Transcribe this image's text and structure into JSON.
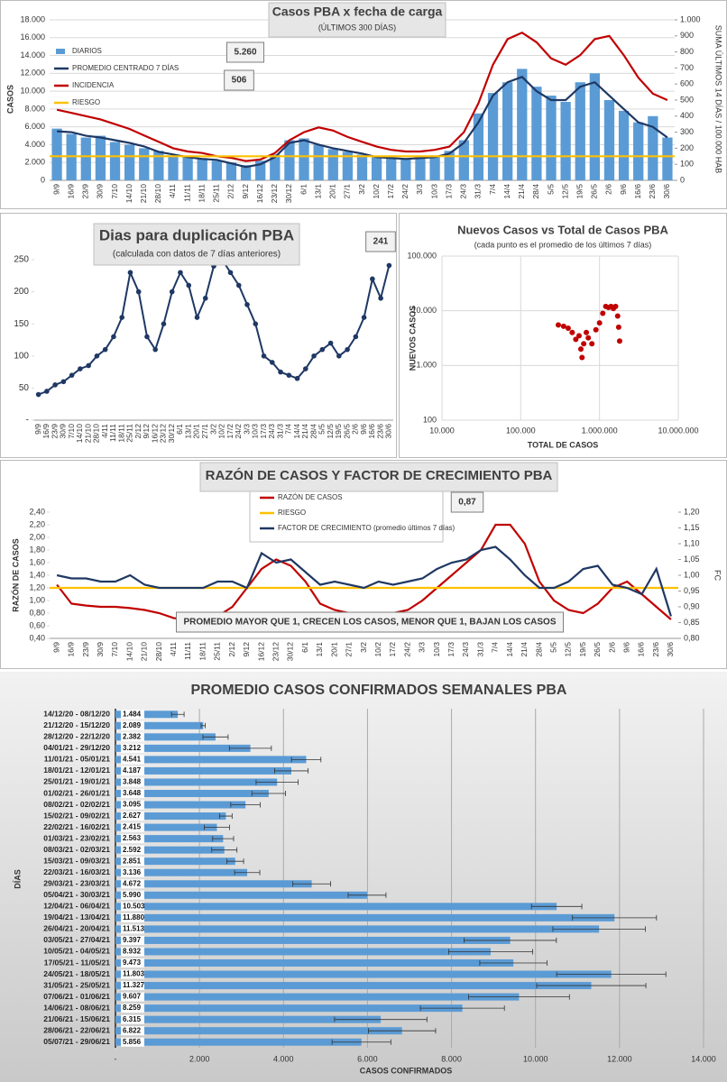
{
  "chart_data": [
    {
      "type": "combo",
      "title": "Casos PBA x fecha de carga",
      "subtitle": "(ÚLTIMOS 300 DÍAS)",
      "ylabel": "CASOS",
      "y2label": "SUMA ÚLTIMOS 14 DÍAS / 100.000 HAB",
      "annotations": [
        "5.260",
        "506"
      ],
      "grid": true,
      "categories": [
        "9/9",
        "16/9",
        "23/9",
        "30/9",
        "7/10",
        "14/10",
        "21/10",
        "28/10",
        "4/11",
        "11/11",
        "18/11",
        "25/11",
        "2/12",
        "9/12",
        "16/12",
        "23/12",
        "30/12",
        "6/1",
        "13/1",
        "20/1",
        "27/1",
        "3/2",
        "10/2",
        "17/2",
        "24/2",
        "3/3",
        "10/3",
        "17/3",
        "24/3",
        "31/3",
        "7/4",
        "14/4",
        "21/4",
        "28/4",
        "5/5",
        "12/5",
        "19/5",
        "26/5",
        "2/6",
        "9/6",
        "16/6",
        "23/6",
        "30/6"
      ],
      "series": [
        {
          "name": "DIARIOS",
          "type": "bar",
          "color": "#5b9bd5",
          "values": [
            5800,
            5200,
            4800,
            5000,
            4300,
            4000,
            3600,
            3300,
            2800,
            2600,
            2500,
            2200,
            2000,
            1700,
            2200,
            2900,
            4500,
            4700,
            4000,
            3500,
            3200,
            2900,
            2700,
            2500,
            2500,
            2600,
            2800,
            3300,
            4500,
            7500,
            9800,
            11000,
            12500,
            10500,
            9500,
            8800,
            11000,
            12000,
            9000,
            7800,
            6500,
            7200,
            4800
          ]
        },
        {
          "name": "PROMEDIO CENTRADO 7 DÍAS",
          "type": "line",
          "color": "#1f3864",
          "values": [
            5500,
            5400,
            5000,
            4800,
            4500,
            4200,
            3800,
            3200,
            2900,
            2600,
            2400,
            2300,
            1900,
            1500,
            1800,
            2600,
            4200,
            4500,
            4000,
            3600,
            3300,
            3000,
            2600,
            2500,
            2400,
            2500,
            2600,
            3000,
            4200,
            6500,
            9500,
            11000,
            11600,
            10000,
            9000,
            9000,
            10500,
            11000,
            9500,
            8000,
            6500,
            6000,
            4800
          ]
        },
        {
          "name": "INCIDENCIA",
          "type": "line",
          "axis": "y2",
          "color": "#c00000",
          "values": [
            440,
            420,
            400,
            380,
            350,
            320,
            280,
            240,
            200,
            180,
            170,
            150,
            140,
            120,
            130,
            170,
            250,
            300,
            330,
            310,
            270,
            240,
            210,
            190,
            180,
            180,
            190,
            210,
            300,
            480,
            720,
            880,
            920,
            860,
            760,
            720,
            780,
            880,
            900,
            780,
            640,
            540,
            500
          ]
        },
        {
          "name": "RIESGO",
          "type": "hline",
          "axis": "y2",
          "color": "#ffc000",
          "value": 150
        }
      ],
      "ylim": [
        0,
        18000
      ],
      "yticks": [
        0,
        {
          "value": 2000,
          "label": "2.000"
        },
        {
          "value": 4000,
          "label": "4.000"
        },
        {
          "value": 6000,
          "label": "6.000"
        },
        {
          "value": 8000,
          "label": "8.000"
        },
        {
          "value": 10000,
          "label": "10.000"
        },
        {
          "value": 12000,
          "label": "12.000"
        },
        {
          "value": 14000,
          "label": "14.000"
        },
        {
          "value": 16000,
          "label": "16.000"
        },
        {
          "value": 18000,
          "label": "18.000"
        }
      ],
      "y2lim": [
        0,
        1000
      ],
      "y2ticks": [
        0,
        100,
        200,
        300,
        400,
        500,
        600,
        700,
        800,
        900,
        {
          "value": 1000,
          "label": "1.000"
        }
      ]
    },
    {
      "type": "line",
      "title": "Dias para duplicación PBA",
      "subtitle": "(calculada con datos de 7 días anteriores)",
      "annotations": [
        "241"
      ],
      "color": "#1f3864",
      "grid": false,
      "categories": [
        "9/9",
        "16/9",
        "23/9",
        "30/9",
        "7/10",
        "14/10",
        "21/10",
        "28/10",
        "4/11",
        "11/11",
        "18/11",
        "25/11",
        "2/12",
        "9/12",
        "16/12",
        "23/12",
        "30/12",
        "6/1",
        "13/1",
        "20/1",
        "27/1",
        "3/2",
        "10/2",
        "17/2",
        "24/2",
        "3/3",
        "10/3",
        "17/3",
        "24/3",
        "31/3",
        "7/4",
        "14/4",
        "21/4",
        "28/4",
        "5/5",
        "12/5",
        "19/5",
        "26/5",
        "2/6",
        "9/6",
        "16/6",
        "23/6",
        "30/6"
      ],
      "values": [
        40,
        45,
        55,
        60,
        70,
        80,
        85,
        100,
        110,
        130,
        160,
        230,
        200,
        130,
        110,
        150,
        200,
        230,
        210,
        160,
        190,
        240,
        250,
        230,
        210,
        180,
        150,
        100,
        90,
        75,
        70,
        65,
        80,
        100,
        110,
        120,
        100,
        110,
        130,
        160,
        220,
        190,
        241
      ],
      "ylim": [
        0,
        250
      ],
      "yticks": [
        {
          "value": 0,
          "label": "-"
        },
        50,
        100,
        150,
        200,
        250
      ]
    },
    {
      "type": "scatter",
      "title": "Nuevos Casos vs Total de Casos PBA",
      "subtitle": "(cada punto es el promedio de los últimos 7 días)",
      "xlabel": "TOTAL DE CASOS",
      "ylabel": "NUEVOS CASOS",
      "color": "#c00000",
      "log_x": true,
      "log_y": true,
      "grid": true,
      "x": [
        300000,
        350000,
        400000,
        450000,
        500000,
        550000,
        580000,
        600000,
        630000,
        680000,
        720000,
        800000,
        900000,
        1000000,
        1100000,
        1200000,
        1300000,
        1400000,
        1500000,
        1600000,
        1700000,
        1750000,
        1800000
      ],
      "values": [
        5500,
        5200,
        4800,
        4000,
        3000,
        3500,
        2000,
        1400,
        2500,
        4000,
        3200,
        2500,
        4500,
        6000,
        9000,
        12000,
        11500,
        12000,
        11000,
        12000,
        8000,
        5000,
        2800
      ],
      "xlim": [
        10000,
        10000000
      ],
      "xticks": [
        {
          "value": 10000,
          "label": "10.000"
        },
        {
          "value": 100000,
          "label": "100.000"
        },
        {
          "value": 1000000,
          "label": "1.000.000"
        },
        {
          "value": 10000000,
          "label": "10.000.000"
        }
      ],
      "ylim": [
        100,
        100000
      ],
      "yticks": [
        100,
        {
          "value": 1000,
          "label": "1.000"
        },
        {
          "value": 10000,
          "label": "10.000"
        },
        {
          "value": 100000,
          "label": "100.000"
        }
      ]
    },
    {
      "type": "combo",
      "title": "RAZÓN DE CASOS Y FACTOR DE CRECIMIENTO PBA",
      "ylabel": "RAZÓN DE CASOS",
      "y2label": "FC",
      "annotations": [
        "0,87",
        "PROMEDIO MAYOR QUE 1, CRECEN LOS CASOS, MENOR QUE 1, BAJAN LOS CASOS"
      ],
      "grid": false,
      "categories": [
        "9/9",
        "16/9",
        "23/9",
        "30/9",
        "7/10",
        "14/10",
        "21/10",
        "28/10",
        "4/11",
        "11/11",
        "18/11",
        "25/11",
        "2/12",
        "9/12",
        "16/12",
        "23/12",
        "30/12",
        "6/1",
        "13/1",
        "20/1",
        "27/1",
        "3/2",
        "10/2",
        "17/2",
        "24/2",
        "3/3",
        "10/3",
        "17/3",
        "24/3",
        "31/3",
        "7/4",
        "14/4",
        "21/4",
        "28/4",
        "5/5",
        "12/5",
        "19/5",
        "26/5",
        "2/6",
        "9/6",
        "16/6",
        "23/6",
        "30/6"
      ],
      "series": [
        {
          "name": "RAZÓN DE CASOS",
          "type": "line",
          "color": "#c00000",
          "values": [
            1.25,
            0.95,
            0.92,
            0.9,
            0.9,
            0.88,
            0.85,
            0.8,
            0.72,
            0.7,
            0.72,
            0.75,
            0.9,
            1.2,
            1.5,
            1.65,
            1.55,
            1.3,
            0.95,
            0.85,
            0.8,
            0.75,
            0.78,
            0.8,
            0.85,
            1.0,
            1.2,
            1.4,
            1.6,
            1.8,
            2.2,
            2.2,
            1.9,
            1.3,
            1.0,
            0.85,
            0.8,
            0.95,
            1.2,
            1.3,
            1.1,
            0.9,
            0.7
          ]
        },
        {
          "name": "RIESGO",
          "type": "hline",
          "color": "#ffc000",
          "value": 1.2
        },
        {
          "name": "FACTOR DE CRECIMIENTO (promedio últimos 7 días)",
          "type": "line",
          "axis": "y2",
          "color": "#1f3864",
          "values": [
            1.0,
            0.99,
            0.99,
            0.98,
            0.98,
            1.0,
            0.97,
            0.96,
            0.96,
            0.96,
            0.96,
            0.98,
            0.98,
            0.96,
            1.07,
            1.04,
            1.05,
            1.01,
            0.97,
            0.98,
            0.97,
            0.96,
            0.98,
            0.97,
            0.98,
            0.99,
            1.02,
            1.04,
            1.05,
            1.08,
            1.09,
            1.05,
            1.0,
            0.96,
            0.96,
            0.98,
            1.02,
            1.03,
            0.97,
            0.96,
            0.94,
            1.02,
            0.87
          ]
        }
      ],
      "ylim": [
        0.4,
        2.4
      ],
      "yticks": [
        {
          "value": 0.4,
          "label": "0,40"
        },
        {
          "value": 0.6,
          "label": "0,60"
        },
        {
          "value": 0.8,
          "label": "0,80"
        },
        {
          "value": 1.0,
          "label": "1,00"
        },
        {
          "value": 1.2,
          "label": "1,20"
        },
        {
          "value": 1.4,
          "label": "1,40"
        },
        {
          "value": 1.6,
          "label": "1,60"
        },
        {
          "value": 1.8,
          "label": "1,80"
        },
        {
          "value": 2.0,
          "label": "2,00"
        },
        {
          "value": 2.2,
          "label": "2,20"
        },
        {
          "value": 2.4,
          "label": "2,40"
        }
      ],
      "y2lim": [
        0.8,
        1.2
      ],
      "y2ticks": [
        {
          "value": 0.8,
          "label": "0,80"
        },
        {
          "value": 0.85,
          "label": "0,85"
        },
        {
          "value": 0.9,
          "label": "0,90"
        },
        {
          "value": 0.95,
          "label": "0,95"
        },
        {
          "value": 1.0,
          "label": "1,00"
        },
        {
          "value": 1.05,
          "label": "1,05"
        },
        {
          "value": 1.1,
          "label": "1,10"
        },
        {
          "value": 1.15,
          "label": "1,15"
        },
        {
          "value": 1.2,
          "label": "1,20"
        }
      ]
    },
    {
      "type": "hbar",
      "title": "PROMEDIO CASOS CONFIRMADOS SEMANALES PBA",
      "xlabel": "CASOS CONFIRMADOS",
      "ylabel": "DÍAS",
      "color": "#5b9bd5",
      "grid": true,
      "categories": [
        "14/12/20 - 08/12/20",
        "21/12/20 - 15/12/20",
        "28/12/20 - 22/12/20",
        "04/01/21 - 29/12/20",
        "11/01/21 - 05/01/21",
        "18/01/21 - 12/01/21",
        "25/01/21 - 19/01/21",
        "01/02/21 - 26/01/21",
        "08/02/21 - 02/02/21",
        "15/02/21 - 09/02/21",
        "22/02/21 - 16/02/21",
        "01/03/21 - 23/02/21",
        "08/03/21 - 02/03/21",
        "15/03/21 - 09/03/21",
        "22/03/21 - 16/03/21",
        "29/03/21 - 23/03/21",
        "05/04/21 - 30/03/21",
        "12/04/21 - 06/04/21",
        "19/04/21 - 13/04/21",
        "26/04/21 - 20/04/21",
        "03/05/21 - 27/04/21",
        "10/05/21 - 04/05/21",
        "17/05/21 - 11/05/21",
        "24/05/21 - 18/05/21",
        "31/05/21 - 25/05/21",
        "07/06/21 - 01/06/21",
        "14/06/21 - 08/06/21",
        "21/06/21 - 15/06/21",
        "28/06/21 - 22/06/21",
        "05/07/21 - 29/06/21"
      ],
      "values": [
        1484,
        2089,
        2382,
        3212,
        4541,
        4187,
        3848,
        3648,
        3095,
        2627,
        2415,
        2563,
        2592,
        2851,
        3136,
        4672,
        5990,
        10503,
        11880,
        11513,
        9397,
        8932,
        9473,
        11803,
        11327,
        9607,
        8259,
        6315,
        6822,
        5856
      ],
      "value_labels": [
        "1.484",
        "2.089",
        "2.382",
        "3.212",
        "4.541",
        "4.187",
        "3.848",
        "3.648",
        "3.095",
        "2.627",
        "2.415",
        "2.563",
        "2.592",
        "2.851",
        "3.136",
        "4.672",
        "5.990",
        "10.503",
        "11.880",
        "11.513",
        "9.397",
        "8.932",
        "9.473",
        "11.803",
        "11.327",
        "9.607",
        "8.259",
        "6.315",
        "6.822",
        "5.856"
      ],
      "errors": [
        150,
        50,
        300,
        500,
        350,
        400,
        500,
        400,
        350,
        150,
        300,
        250,
        300,
        200,
        300,
        450,
        450,
        600,
        1000,
        1100,
        1100,
        1000,
        800,
        1300,
        1300,
        1200,
        1000,
        1100,
        800,
        700
      ],
      "xlim": [
        0,
        14000
      ],
      "xticks": [
        {
          "value": 0,
          "label": "-"
        },
        {
          "value": 2000,
          "label": "2.000"
        },
        {
          "value": 4000,
          "label": "4.000"
        },
        {
          "value": 6000,
          "label": "6.000"
        },
        {
          "value": 8000,
          "label": "8.000"
        },
        {
          "value": 10000,
          "label": "10.000"
        },
        {
          "value": 12000,
          "label": "12.000"
        },
        {
          "value": 14000,
          "label": "14.000"
        }
      ]
    }
  ]
}
